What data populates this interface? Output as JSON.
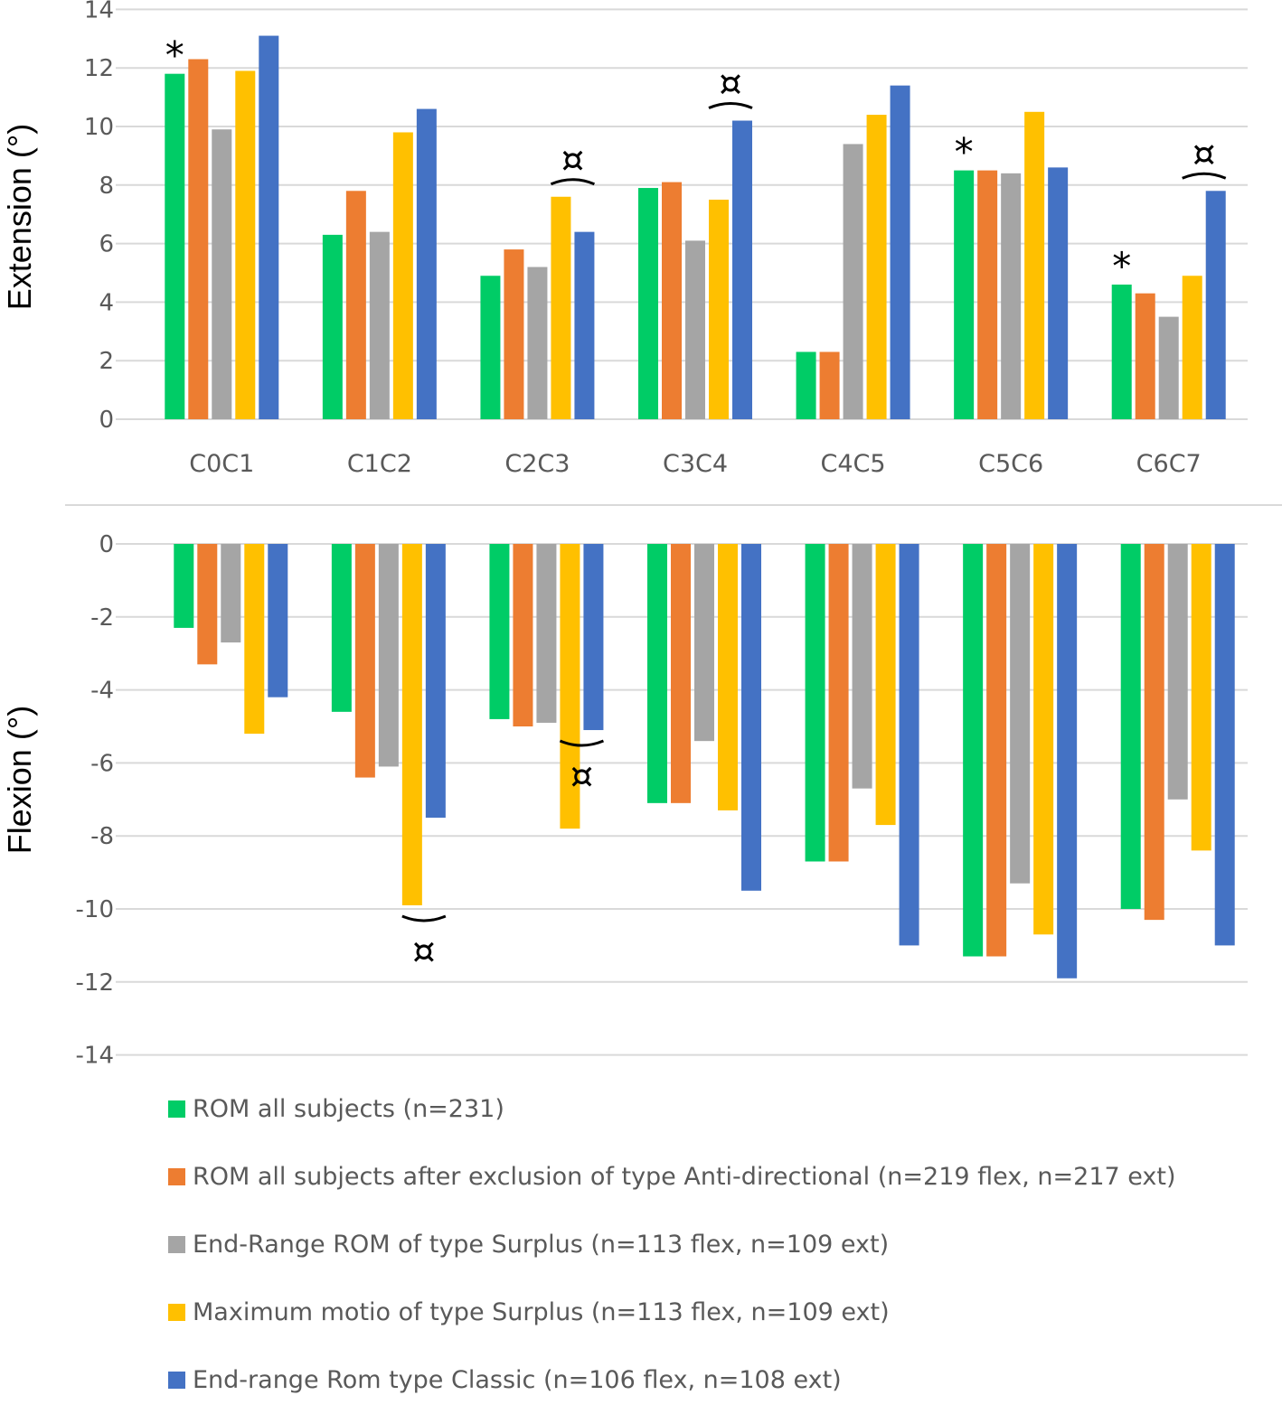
{
  "chart_data": [
    {
      "type": "bar",
      "ylabel": "Extension (°)",
      "ylim": [
        0,
        14
      ],
      "yticks": [
        0,
        2,
        4,
        6,
        8,
        10,
        12,
        14
      ],
      "grid": true,
      "categories": [
        "C0C1",
        "C1C2",
        "C2C3",
        "C3C4",
        "C4C5",
        "C5C6",
        "C6C7"
      ],
      "series": [
        {
          "name": "ROM all subjects (n=231)",
          "color": "#00cc66",
          "values": [
            11.8,
            6.3,
            4.9,
            7.9,
            2.3,
            8.5,
            4.6
          ]
        },
        {
          "name": "ROM all subjects after exclusion of type Anti-directional (n=219 flex, n=217 ext)",
          "color": "#ed7d31",
          "values": [
            12.3,
            7.8,
            5.8,
            8.1,
            2.3,
            8.5,
            4.3
          ]
        },
        {
          "name": "End-Range ROM of type Surplus (n=113 flex, n=109 ext)",
          "color": "#a5a5a5",
          "values": [
            9.9,
            6.4,
            5.2,
            6.1,
            9.4,
            8.4,
            3.5
          ]
        },
        {
          "name": "Maximum motio of type Surplus (n=113 flex, n=109 ext)",
          "color": "#ffc000",
          "values": [
            11.9,
            9.8,
            7.6,
            7.5,
            10.4,
            10.5,
            4.9
          ]
        },
        {
          "name": "End-range Rom type Classic (n=106 flex, n=108 ext)",
          "color": "#4472c4",
          "values": [
            13.1,
            10.6,
            6.4,
            10.2,
            11.4,
            8.6,
            7.8
          ]
        }
      ],
      "annotations": [
        {
          "text": "*",
          "category": "C0C1",
          "series": 0
        },
        {
          "text": "*",
          "category": "C5C6",
          "series": 0
        },
        {
          "text": "*",
          "category": "C6C7",
          "series": 0
        },
        {
          "text": "¤",
          "category": "C2C3",
          "series": 3,
          "bracket": true
        },
        {
          "text": "¤",
          "category": "C3C4",
          "series": 4,
          "bracket": true
        },
        {
          "text": "¤",
          "category": "C6C7",
          "series": 4,
          "bracket": true
        }
      ]
    },
    {
      "type": "bar",
      "ylabel": "Flexion (°)",
      "ylim": [
        -14,
        0
      ],
      "yticks": [
        0,
        -2,
        -4,
        -6,
        -8,
        -10,
        -12,
        -14
      ],
      "grid": true,
      "categories": [
        "C0C1",
        "C1C2",
        "C2C3",
        "C3C4",
        "C4C5",
        "C5C6",
        "C6C7"
      ],
      "series": [
        {
          "name": "ROM all subjects (n=231)",
          "color": "#00cc66",
          "values": [
            -2.3,
            -4.6,
            -4.8,
            -7.1,
            -8.7,
            -11.3,
            -10.0
          ]
        },
        {
          "name": "ROM all subjects after exclusion of type Anti-directional (n=219 flex, n=217 ext)",
          "color": "#ed7d31",
          "values": [
            -3.3,
            -6.4,
            -5.0,
            -7.1,
            -8.7,
            -11.3,
            -10.3
          ]
        },
        {
          "name": "End-Range ROM of type Surplus (n=113 flex, n=109 ext)",
          "color": "#a5a5a5",
          "values": [
            -2.7,
            -6.1,
            -4.9,
            -5.4,
            -6.7,
            -9.3,
            -7.0
          ]
        },
        {
          "name": "Maximum motio of type Surplus (n=113 flex, n=109 ext)",
          "color": "#ffc000",
          "values": [
            -5.2,
            -9.9,
            -7.8,
            -7.3,
            -7.7,
            -10.7,
            -8.4
          ]
        },
        {
          "name": "End-range Rom type Classic (n=106 flex, n=108 ext)",
          "color": "#4472c4",
          "values": [
            -4.2,
            -7.5,
            -5.1,
            -9.5,
            -11.0,
            -11.9,
            -11.0
          ]
        }
      ],
      "annotations": [
        {
          "text": "¤",
          "category": "C1C2",
          "series": 3,
          "bracket": true
        },
        {
          "text": "¤",
          "category": "C2C3",
          "series": 4,
          "bracket": true
        }
      ]
    }
  ]
}
